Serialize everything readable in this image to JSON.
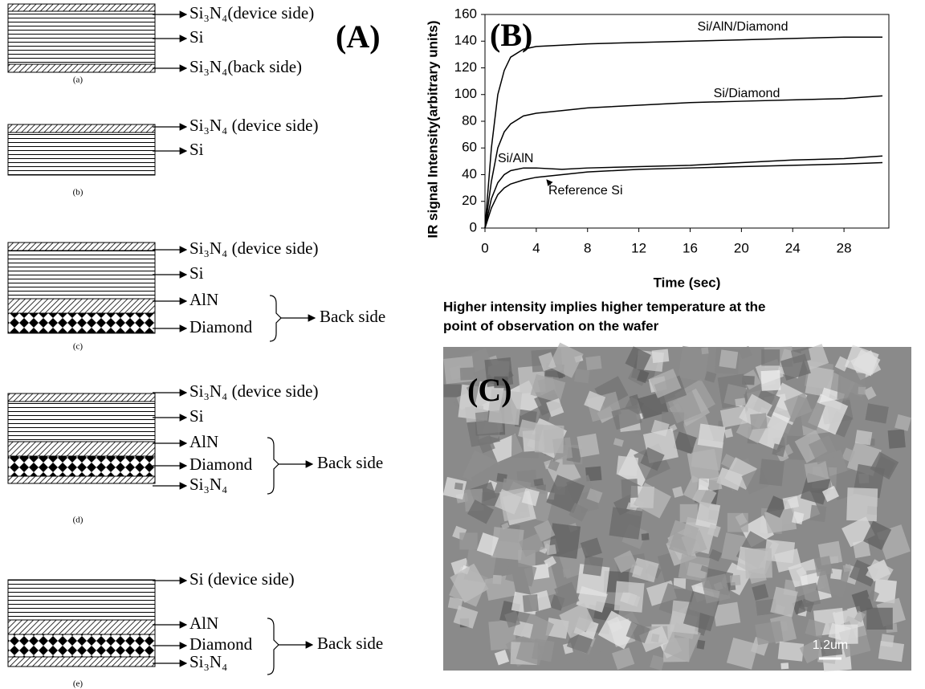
{
  "panel_labels": {
    "A": "(A)",
    "B": "(B)",
    "C": "(C)"
  },
  "diagrams": [
    {
      "caption": "(a)",
      "layers": [
        "Si₃N₄(device side)",
        "Si",
        "Si₃N₄(back side)"
      ]
    },
    {
      "caption": "(b)",
      "layers": [
        "Si₃N₄ (device side)",
        "Si"
      ]
    },
    {
      "caption": "(c)",
      "layers": [
        "Si₃N₄ (device side)",
        "Si",
        "AlN",
        "Diamond"
      ],
      "group": "Back side"
    },
    {
      "caption": "(d)",
      "layers": [
        "Si₃N₄ (device side)",
        "Si",
        "AlN",
        "Diamond",
        "Si₃N₄"
      ],
      "group": "Back side"
    },
    {
      "caption": "(e)",
      "layers": [
        "Si (device side)",
        "AlN",
        "Diamond",
        "Si₃N₄"
      ],
      "group": "Back side"
    }
  ],
  "chart_data": {
    "type": "line",
    "xlabel": "Time (sec)",
    "ylabel": "IR signal Intensity(arbitrary units)",
    "x": [
      0,
      0.5,
      1,
      1.5,
      2,
      3,
      4,
      6,
      8,
      12,
      16,
      20,
      24,
      28,
      31
    ],
    "series": [
      {
        "name": "Si/AlN/Diamond",
        "color": "#000000",
        "values": [
          0,
          60,
          100,
          118,
          128,
          134,
          136,
          137,
          138,
          139,
          140,
          141,
          142,
          143,
          143
        ]
      },
      {
        "name": "Si/Diamond",
        "color": "#000000",
        "values": [
          0,
          35,
          60,
          72,
          78,
          84,
          86,
          88,
          90,
          92,
          94,
          95,
          96,
          97,
          99
        ]
      },
      {
        "name": "Si/AlN",
        "color": "#000000",
        "values": [
          0,
          22,
          34,
          40,
          43,
          45,
          45,
          44,
          45,
          46,
          47,
          49,
          51,
          52,
          54
        ]
      },
      {
        "name": "Reference Si",
        "color": "#000000",
        "values": [
          0,
          15,
          25,
          30,
          33,
          36,
          38,
          40,
          42,
          44,
          45,
          46,
          47,
          48,
          49
        ]
      }
    ],
    "xlim": [
      0,
      31.5
    ],
    "ylim": [
      0,
      160
    ],
    "xticks": [
      0,
      4,
      8,
      12,
      16,
      20,
      24,
      28
    ],
    "yticks": [
      0,
      20,
      40,
      60,
      80,
      100,
      120,
      140,
      160
    ]
  },
  "chart_caption": [
    "Higher intensity implies higher temperature at the",
    "point of observation on the wafer"
  ],
  "sem_image": {
    "scale_bar": "1.2um"
  }
}
